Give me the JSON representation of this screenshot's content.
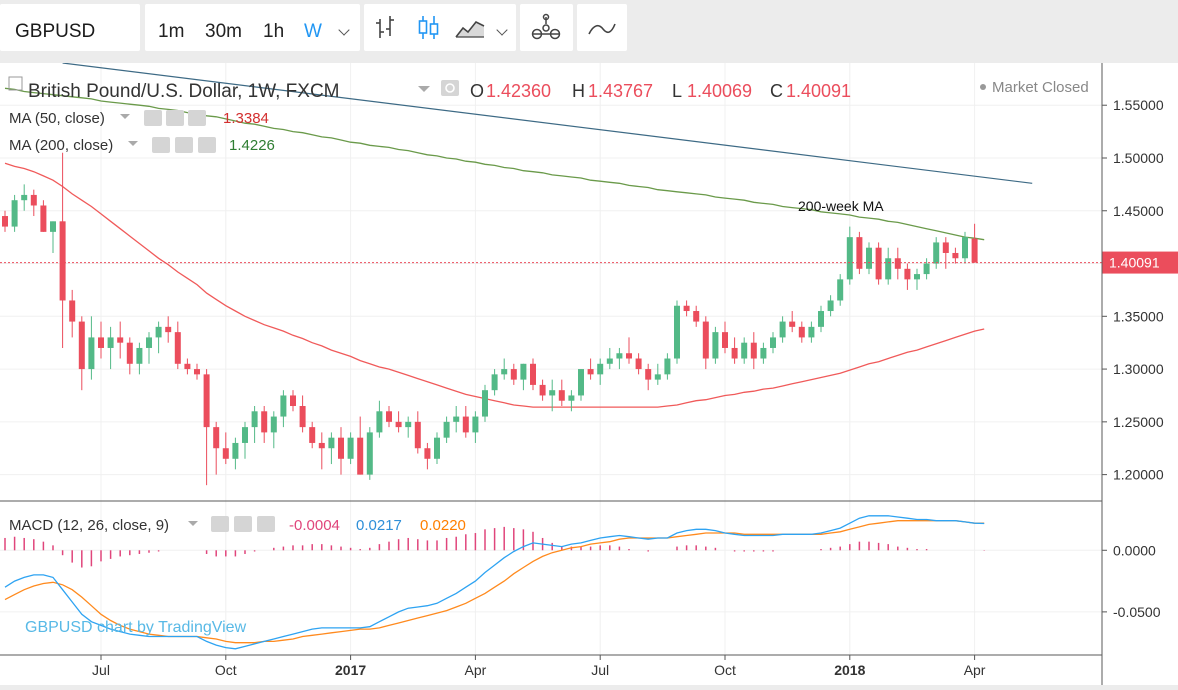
{
  "toolbar": {
    "symbol": "GBPUSD",
    "intervals": [
      {
        "label": "1m",
        "active": false
      },
      {
        "label": "30m",
        "active": false
      },
      {
        "label": "1h",
        "active": false
      },
      {
        "label": "W",
        "active": true
      }
    ],
    "icons": [
      "chevron-down-icon",
      "bar-style-icon",
      "candle-style-icon",
      "area-style-icon",
      "chevron-down-icon",
      "indicators-icon",
      "compare-icon"
    ]
  },
  "legend": {
    "title": "British Pound/U.S. Dollar, 1W, FXCM",
    "ohlc": [
      {
        "k": "O",
        "v": "1.42360"
      },
      {
        "k": "H",
        "v": "1.43767"
      },
      {
        "k": "L",
        "v": "1.40069"
      },
      {
        "k": "C",
        "v": "1.40091"
      }
    ],
    "ma50": {
      "label": "MA (50, close)",
      "value": "1.3384"
    },
    "ma200": {
      "label": "MA (200, close)",
      "value": "1.4226"
    },
    "market_status": "Market Closed",
    "macd": {
      "label": "MACD (12, 26, close, 9)",
      "hist": "-0.0004",
      "macd": "0.0217",
      "signal": "0.0220"
    }
  },
  "colors": {
    "up": "#53b987",
    "down": "#eb4d5c",
    "ma50": "#f05a5a",
    "ma200": "#6a9a4a",
    "trendline": "#3d6a85",
    "macd": "#2ea3f2",
    "signal": "#ff8a1e",
    "hist": "#e0457b",
    "last_price": "#eb4d5c"
  },
  "annotation": "200-week MA",
  "watermark": "GBPUSD chart by TradingView",
  "chart_data": {
    "type": "candlestick",
    "interval": "1W",
    "last_price": "1.40091",
    "price_axis": {
      "ticks": [
        "1.55000",
        "1.50000",
        "1.45000",
        "1.40000",
        "1.35000",
        "1.30000",
        "1.25000",
        "1.20000"
      ],
      "range": [
        1.175,
        1.59
      ]
    },
    "macd_axis": {
      "ticks": [
        "0.0000",
        "-0.0500"
      ],
      "range": [
        -0.085,
        0.04
      ]
    },
    "x_labels": [
      "Jul",
      "Oct",
      "2017",
      "Apr",
      "Jul",
      "Oct",
      "2018",
      "Apr"
    ],
    "x_label_index": [
      10,
      23,
      36,
      49,
      62,
      75,
      88,
      101
    ],
    "candles": [
      [
        1.445,
        1.45,
        1.43,
        1.435
      ],
      [
        1.435,
        1.465,
        1.43,
        1.46
      ],
      [
        1.46,
        1.475,
        1.45,
        1.465
      ],
      [
        1.465,
        1.47,
        1.445,
        1.455
      ],
      [
        1.455,
        1.46,
        1.43,
        1.43
      ],
      [
        1.43,
        1.44,
        1.41,
        1.44
      ],
      [
        1.44,
        1.505,
        1.32,
        1.365
      ],
      [
        1.365,
        1.375,
        1.33,
        1.345
      ],
      [
        1.345,
        1.35,
        1.28,
        1.3
      ],
      [
        1.3,
        1.35,
        1.29,
        1.33
      ],
      [
        1.33,
        1.345,
        1.31,
        1.32
      ],
      [
        1.32,
        1.34,
        1.3,
        1.33
      ],
      [
        1.33,
        1.345,
        1.31,
        1.325
      ],
      [
        1.325,
        1.33,
        1.295,
        1.305
      ],
      [
        1.305,
        1.325,
        1.295,
        1.32
      ],
      [
        1.32,
        1.335,
        1.305,
        1.33
      ],
      [
        1.33,
        1.345,
        1.315,
        1.34
      ],
      [
        1.34,
        1.35,
        1.325,
        1.335
      ],
      [
        1.335,
        1.345,
        1.3,
        1.305
      ],
      [
        1.305,
        1.31,
        1.295,
        1.3
      ],
      [
        1.3,
        1.305,
        1.29,
        1.295
      ],
      [
        1.295,
        1.3,
        1.19,
        1.245
      ],
      [
        1.245,
        1.25,
        1.2,
        1.225
      ],
      [
        1.225,
        1.24,
        1.21,
        1.215
      ],
      [
        1.215,
        1.235,
        1.205,
        1.23
      ],
      [
        1.23,
        1.25,
        1.215,
        1.245
      ],
      [
        1.245,
        1.265,
        1.23,
        1.26
      ],
      [
        1.26,
        1.265,
        1.23,
        1.24
      ],
      [
        1.24,
        1.26,
        1.225,
        1.255
      ],
      [
        1.255,
        1.28,
        1.245,
        1.275
      ],
      [
        1.275,
        1.28,
        1.26,
        1.265
      ],
      [
        1.265,
        1.275,
        1.24,
        1.245
      ],
      [
        1.245,
        1.25,
        1.225,
        1.23
      ],
      [
        1.23,
        1.24,
        1.205,
        1.225
      ],
      [
        1.225,
        1.24,
        1.21,
        1.235
      ],
      [
        1.235,
        1.245,
        1.2,
        1.215
      ],
      [
        1.215,
        1.24,
        1.21,
        1.235
      ],
      [
        1.235,
        1.255,
        1.2,
        1.2
      ],
      [
        1.2,
        1.245,
        1.195,
        1.24
      ],
      [
        1.24,
        1.27,
        1.235,
        1.26
      ],
      [
        1.26,
        1.265,
        1.245,
        1.25
      ],
      [
        1.25,
        1.26,
        1.24,
        1.245
      ],
      [
        1.245,
        1.255,
        1.235,
        1.25
      ],
      [
        1.25,
        1.26,
        1.22,
        1.225
      ],
      [
        1.225,
        1.23,
        1.205,
        1.215
      ],
      [
        1.215,
        1.24,
        1.21,
        1.235
      ],
      [
        1.235,
        1.255,
        1.23,
        1.25
      ],
      [
        1.25,
        1.265,
        1.24,
        1.255
      ],
      [
        1.255,
        1.265,
        1.235,
        1.24
      ],
      [
        1.24,
        1.26,
        1.23,
        1.255
      ],
      [
        1.255,
        1.285,
        1.25,
        1.28
      ],
      [
        1.28,
        1.3,
        1.275,
        1.295
      ],
      [
        1.295,
        1.31,
        1.29,
        1.3
      ],
      [
        1.3,
        1.305,
        1.285,
        1.29
      ],
      [
        1.29,
        1.305,
        1.28,
        1.305
      ],
      [
        1.305,
        1.31,
        1.28,
        1.285
      ],
      [
        1.285,
        1.29,
        1.27,
        1.275
      ],
      [
        1.275,
        1.29,
        1.26,
        1.28
      ],
      [
        1.28,
        1.29,
        1.265,
        1.27
      ],
      [
        1.27,
        1.28,
        1.26,
        1.275
      ],
      [
        1.275,
        1.3,
        1.27,
        1.3
      ],
      [
        1.3,
        1.31,
        1.29,
        1.295
      ],
      [
        1.295,
        1.31,
        1.285,
        1.305
      ],
      [
        1.305,
        1.32,
        1.3,
        1.31
      ],
      [
        1.31,
        1.32,
        1.3,
        1.315
      ],
      [
        1.315,
        1.33,
        1.305,
        1.31
      ],
      [
        1.31,
        1.315,
        1.295,
        1.3
      ],
      [
        1.3,
        1.305,
        1.28,
        1.29
      ],
      [
        1.29,
        1.305,
        1.285,
        1.295
      ],
      [
        1.295,
        1.315,
        1.29,
        1.31
      ],
      [
        1.31,
        1.365,
        1.305,
        1.36
      ],
      [
        1.36,
        1.365,
        1.35,
        1.355
      ],
      [
        1.355,
        1.36,
        1.34,
        1.345
      ],
      [
        1.345,
        1.35,
        1.3,
        1.31
      ],
      [
        1.31,
        1.34,
        1.305,
        1.335
      ],
      [
        1.335,
        1.345,
        1.315,
        1.32
      ],
      [
        1.32,
        1.33,
        1.305,
        1.31
      ],
      [
        1.31,
        1.33,
        1.305,
        1.325
      ],
      [
        1.325,
        1.335,
        1.3,
        1.31
      ],
      [
        1.31,
        1.325,
        1.305,
        1.32
      ],
      [
        1.32,
        1.335,
        1.315,
        1.33
      ],
      [
        1.33,
        1.35,
        1.325,
        1.345
      ],
      [
        1.345,
        1.355,
        1.335,
        1.34
      ],
      [
        1.34,
        1.345,
        1.325,
        1.33
      ],
      [
        1.33,
        1.345,
        1.325,
        1.34
      ],
      [
        1.34,
        1.36,
        1.335,
        1.355
      ],
      [
        1.355,
        1.37,
        1.35,
        1.365
      ],
      [
        1.365,
        1.39,
        1.36,
        1.385
      ],
      [
        1.385,
        1.435,
        1.38,
        1.425
      ],
      [
        1.425,
        1.43,
        1.39,
        1.395
      ],
      [
        1.395,
        1.42,
        1.39,
        1.415
      ],
      [
        1.415,
        1.42,
        1.38,
        1.385
      ],
      [
        1.385,
        1.415,
        1.38,
        1.405
      ],
      [
        1.405,
        1.415,
        1.385,
        1.395
      ],
      [
        1.395,
        1.4,
        1.375,
        1.385
      ],
      [
        1.385,
        1.395,
        1.375,
        1.39
      ],
      [
        1.39,
        1.405,
        1.385,
        1.4
      ],
      [
        1.4,
        1.425,
        1.395,
        1.42
      ],
      [
        1.42,
        1.425,
        1.395,
        1.41
      ],
      [
        1.41,
        1.415,
        1.4,
        1.405
      ],
      [
        1.405,
        1.43,
        1.4,
        1.425
      ],
      [
        1.4236,
        1.43767,
        1.40069,
        1.40091
      ]
    ],
    "ma50": [
      1.495,
      1.492,
      1.49,
      1.487,
      1.483,
      1.479,
      1.473,
      1.466,
      1.46,
      1.454,
      1.447,
      1.44,
      1.433,
      1.426,
      1.419,
      1.412,
      1.405,
      1.399,
      1.392,
      1.386,
      1.38,
      1.372,
      1.366,
      1.36,
      1.355,
      1.35,
      1.346,
      1.342,
      1.339,
      1.336,
      1.332,
      1.329,
      1.325,
      1.322,
      1.318,
      1.315,
      1.312,
      1.308,
      1.305,
      1.302,
      1.3,
      1.297,
      1.294,
      1.291,
      1.288,
      1.285,
      1.282,
      1.279,
      1.276,
      1.274,
      1.272,
      1.27,
      1.268,
      1.266,
      1.265,
      1.264,
      1.264,
      1.264,
      1.264,
      1.264,
      1.264,
      1.264,
      1.264,
      1.264,
      1.264,
      1.264,
      1.264,
      1.264,
      1.264,
      1.265,
      1.266,
      1.268,
      1.27,
      1.271,
      1.273,
      1.275,
      1.276,
      1.278,
      1.279,
      1.281,
      1.282,
      1.284,
      1.286,
      1.288,
      1.29,
      1.292,
      1.294,
      1.296,
      1.299,
      1.302,
      1.305,
      1.307,
      1.31,
      1.313,
      1.316,
      1.318,
      1.321,
      1.324,
      1.327,
      1.33,
      1.333,
      1.336,
      1.338
    ],
    "ma200": [
      1.566,
      1.565,
      1.563,
      1.562,
      1.561,
      1.56,
      1.559,
      1.558,
      1.557,
      1.556,
      1.554,
      1.553,
      1.552,
      1.551,
      1.55,
      1.549,
      1.547,
      1.546,
      1.545,
      1.543,
      1.542,
      1.54,
      1.539,
      1.537,
      1.535,
      1.533,
      1.532,
      1.53,
      1.528,
      1.527,
      1.525,
      1.524,
      1.522,
      1.52,
      1.519,
      1.517,
      1.515,
      1.514,
      1.512,
      1.511,
      1.51,
      1.508,
      1.507,
      1.505,
      1.503,
      1.502,
      1.5,
      1.499,
      1.497,
      1.496,
      1.494,
      1.493,
      1.491,
      1.49,
      1.488,
      1.487,
      1.486,
      1.484,
      1.483,
      1.482,
      1.481,
      1.479,
      1.478,
      1.477,
      1.476,
      1.474,
      1.473,
      1.472,
      1.47,
      1.469,
      1.468,
      1.467,
      1.466,
      1.465,
      1.463,
      1.462,
      1.461,
      1.46,
      1.458,
      1.457,
      1.456,
      1.454,
      1.453,
      1.452,
      1.451,
      1.449,
      1.448,
      1.447,
      1.446,
      1.444,
      1.443,
      1.442,
      1.44,
      1.439,
      1.437,
      1.435,
      1.433,
      1.431,
      1.429,
      1.427,
      1.425,
      1.424,
      1.4226
    ],
    "trendline": {
      "from": {
        "index": 6,
        "price": 1.59
      },
      "to": {
        "index": 107,
        "price": 1.476
      }
    },
    "macd": [
      -0.03,
      -0.025,
      -0.022,
      -0.02,
      -0.02,
      -0.022,
      -0.032,
      -0.042,
      -0.052,
      -0.058,
      -0.061,
      -0.064,
      -0.066,
      -0.068,
      -0.069,
      -0.07,
      -0.07,
      -0.07,
      -0.07,
      -0.07,
      -0.07,
      -0.074,
      -0.077,
      -0.079,
      -0.08,
      -0.078,
      -0.076,
      -0.074,
      -0.072,
      -0.07,
      -0.068,
      -0.066,
      -0.064,
      -0.063,
      -0.063,
      -0.063,
      -0.063,
      -0.063,
      -0.062,
      -0.058,
      -0.054,
      -0.05,
      -0.047,
      -0.046,
      -0.045,
      -0.043,
      -0.039,
      -0.035,
      -0.03,
      -0.025,
      -0.018,
      -0.012,
      -0.006,
      -0.001,
      0.003,
      0.006,
      0.005,
      0.004,
      0.003,
      0.005,
      0.006,
      0.008,
      0.01,
      0.011,
      0.012,
      0.011,
      0.01,
      0.009,
      0.01,
      0.01,
      0.014,
      0.016,
      0.017,
      0.017,
      0.016,
      0.014,
      0.013,
      0.012,
      0.012,
      0.012,
      0.012,
      0.013,
      0.013,
      0.013,
      0.013,
      0.014,
      0.016,
      0.018,
      0.022,
      0.026,
      0.028,
      0.028,
      0.028,
      0.027,
      0.026,
      0.025,
      0.025,
      0.024,
      0.024,
      0.024,
      0.023,
      0.022,
      0.0217
    ],
    "signal": [
      -0.04,
      -0.036,
      -0.032,
      -0.029,
      -0.027,
      -0.026,
      -0.028,
      -0.032,
      -0.038,
      -0.045,
      -0.052,
      -0.057,
      -0.061,
      -0.064,
      -0.066,
      -0.068,
      -0.069,
      -0.07,
      -0.07,
      -0.07,
      -0.07,
      -0.071,
      -0.072,
      -0.074,
      -0.075,
      -0.075,
      -0.075,
      -0.074,
      -0.074,
      -0.073,
      -0.072,
      -0.07,
      -0.069,
      -0.068,
      -0.067,
      -0.066,
      -0.065,
      -0.064,
      -0.064,
      -0.063,
      -0.061,
      -0.059,
      -0.057,
      -0.055,
      -0.053,
      -0.051,
      -0.049,
      -0.046,
      -0.043,
      -0.039,
      -0.035,
      -0.03,
      -0.025,
      -0.019,
      -0.014,
      -0.009,
      -0.005,
      -0.002,
      0.0,
      0.002,
      0.003,
      0.005,
      0.006,
      0.007,
      0.009,
      0.01,
      0.01,
      0.01,
      0.01,
      0.01,
      0.011,
      0.012,
      0.013,
      0.014,
      0.014,
      0.014,
      0.014,
      0.013,
      0.013,
      0.013,
      0.013,
      0.013,
      0.013,
      0.013,
      0.013,
      0.013,
      0.014,
      0.015,
      0.017,
      0.019,
      0.021,
      0.022,
      0.023,
      0.024,
      0.024,
      0.024,
      0.024,
      0.024,
      0.024,
      0.024,
      0.023,
      0.022,
      0.022
    ]
  }
}
